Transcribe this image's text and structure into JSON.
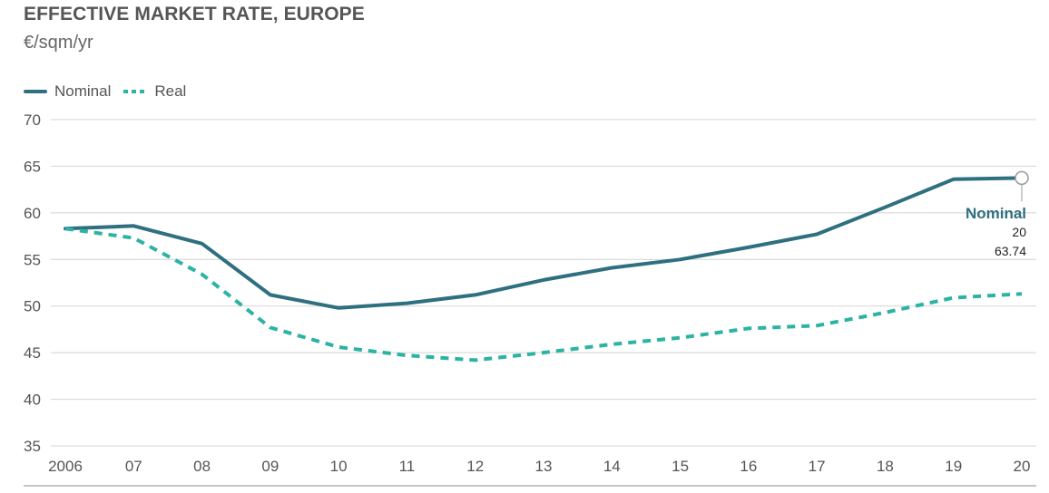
{
  "chart_data": {
    "type": "line",
    "title": "EFFECTIVE MARKET RATE, EUROPE",
    "subtitle": "€/sqm/yr",
    "x": [
      "2006",
      "07",
      "08",
      "09",
      "10",
      "11",
      "12",
      "13",
      "14",
      "15",
      "16",
      "17",
      "18",
      "19",
      "20"
    ],
    "ylim": [
      35,
      70
    ],
    "yticks": [
      35,
      40,
      45,
      50,
      55,
      60,
      65,
      70
    ],
    "grid": true,
    "legend_position": "top-left",
    "series": [
      {
        "name": "Nominal",
        "style": "solid",
        "color": "#2e6f80",
        "values": [
          58.3,
          58.6,
          56.7,
          51.2,
          49.8,
          50.3,
          51.2,
          52.8,
          54.1,
          55.0,
          56.3,
          57.7,
          60.6,
          63.6,
          63.74
        ]
      },
      {
        "name": "Real",
        "style": "dashed",
        "color": "#2bb3a3",
        "values": [
          58.3,
          57.3,
          53.4,
          47.7,
          45.6,
          44.7,
          44.2,
          45.0,
          45.9,
          46.6,
          47.6,
          47.9,
          49.3,
          50.9,
          51.3
        ]
      }
    ],
    "annotation": {
      "series": "Nominal",
      "label": "Nominal",
      "x": "20",
      "value": "63.74"
    }
  }
}
